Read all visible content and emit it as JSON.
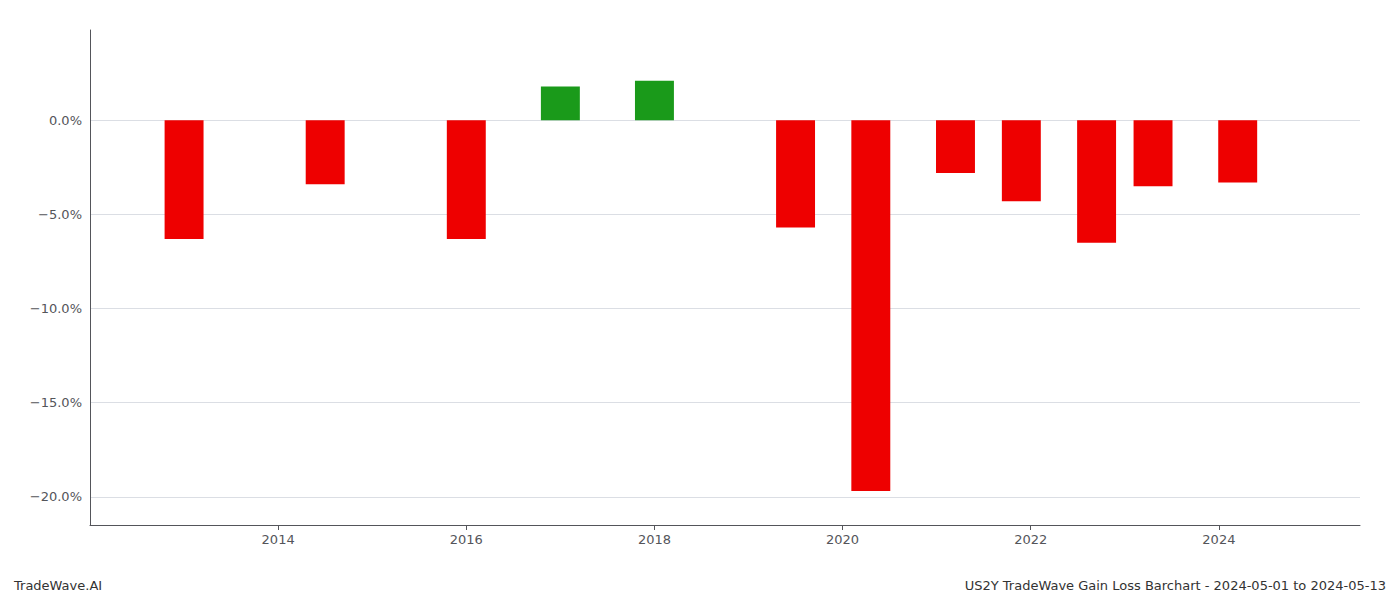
{
  "chart_data": {
    "type": "bar",
    "x": [
      2013.0,
      2014.5,
      2016.0,
      2017.0,
      2018.0,
      2019.5,
      2020.3,
      2021.2,
      2021.9,
      2022.7,
      2023.3,
      2024.2
    ],
    "values": [
      -0.063,
      -0.034,
      -0.063,
      0.018,
      0.021,
      -0.057,
      -0.197,
      -0.028,
      -0.043,
      -0.065,
      -0.035,
      -0.033
    ],
    "colors": [
      "#ee0000",
      "#ee0000",
      "#ee0000",
      "#1a9a1a",
      "#1a9a1a",
      "#ee0000",
      "#ee0000",
      "#ee0000",
      "#ee0000",
      "#ee0000",
      "#ee0000",
      "#ee0000"
    ],
    "xlim": [
      2012.0,
      2025.5
    ],
    "xticks": [
      2014,
      2016,
      2018,
      2020,
      2022,
      2024
    ],
    "ylim": [
      -0.215,
      0.048
    ],
    "yticks": [
      {
        "value": 0.0,
        "label": "0.0%"
      },
      {
        "value": -0.05,
        "label": "−5.0%"
      },
      {
        "value": -0.1,
        "label": "−10.0%"
      },
      {
        "value": -0.15,
        "label": "−15.0%"
      },
      {
        "value": -0.2,
        "label": "−20.0%"
      }
    ],
    "grid": true,
    "annotations": [
      "TradeWave.AI",
      "US2Y TradeWave Gain Loss Barchart - 2024-05-01 to 2024-05-13"
    ]
  }
}
